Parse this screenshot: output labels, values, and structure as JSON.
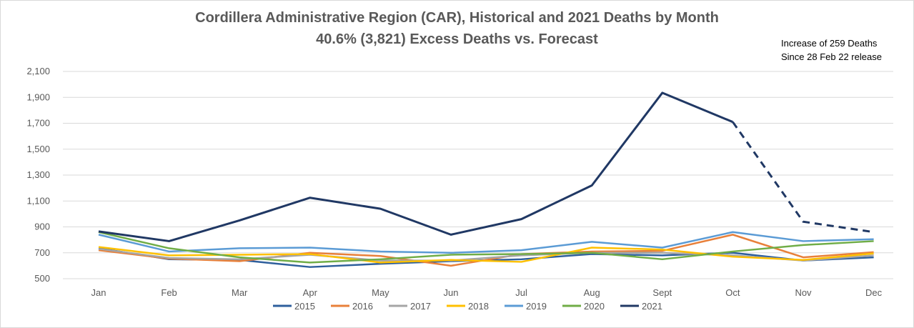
{
  "chart_data": {
    "type": "line",
    "title": "Cordillera Administrative Region (CAR), Historical and 2021 Deaths by Month",
    "subtitle": "40.6% (3,821) Excess Deaths vs. Forecast",
    "annotation": [
      "Increase of 259 Deaths",
      "Since 28 Feb 22 release"
    ],
    "categories": [
      "Jan",
      "Feb",
      "Mar",
      "Apr",
      "May",
      "Jun",
      "Jul",
      "Aug",
      "Sept",
      "Oct",
      "Nov",
      "Dec"
    ],
    "ylim": [
      500,
      2100
    ],
    "yticks": [
      500,
      700,
      900,
      1100,
      1300,
      1500,
      1700,
      1900,
      2100
    ],
    "ytick_labels": [
      "500",
      "700",
      "900",
      "1,100",
      "1,300",
      "1,500",
      "1,700",
      "1,900",
      "2,100"
    ],
    "grid": true,
    "legend_position": "bottom",
    "series": [
      {
        "name": "2015",
        "color": "#2e5f9c",
        "values": [
          735,
          650,
          645,
          590,
          615,
          635,
          650,
          690,
          680,
          700,
          640,
          665
        ]
      },
      {
        "name": "2016",
        "color": "#e8803a",
        "values": [
          720,
          655,
          635,
          700,
          675,
          600,
          690,
          710,
          715,
          840,
          665,
          705
        ]
      },
      {
        "name": "2017",
        "color": "#a5a5a5",
        "values": [
          730,
          660,
          650,
          685,
          640,
          640,
          680,
          700,
          700,
          680,
          640,
          680
        ]
      },
      {
        "name": "2018",
        "color": "#ffc000",
        "values": [
          745,
          680,
          685,
          690,
          625,
          645,
          630,
          740,
          725,
          670,
          645,
          695
        ]
      },
      {
        "name": "2019",
        "color": "#5b9bd5",
        "values": [
          840,
          710,
          735,
          740,
          710,
          700,
          720,
          785,
          740,
          860,
          790,
          805
        ]
      },
      {
        "name": "2020",
        "color": "#70ad47",
        "values": [
          860,
          735,
          665,
          625,
          650,
          685,
          690,
          700,
          650,
          710,
          760,
          790
        ]
      },
      {
        "name": "2021",
        "color": "#203864",
        "values": [
          865,
          790,
          950,
          1125,
          1040,
          840,
          960,
          1220,
          1935,
          1710,
          940,
          860
        ],
        "dashed_from_index": 9
      }
    ]
  }
}
